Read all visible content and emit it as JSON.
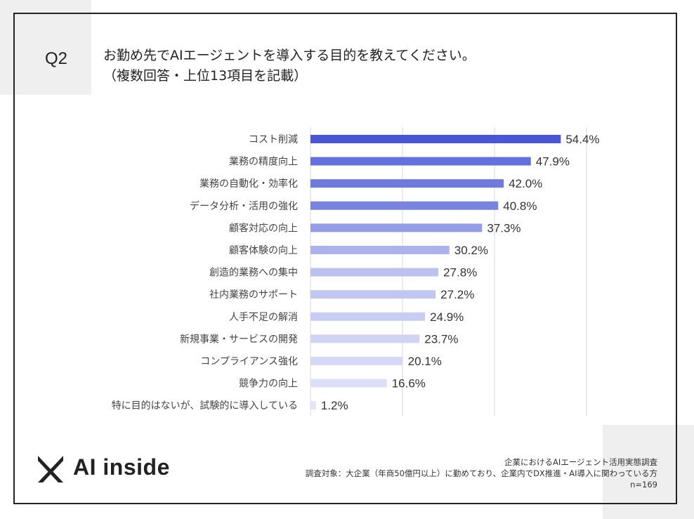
{
  "question": {
    "number": "Q2",
    "title_line1": "お勤め先でAIエージェントを導入する目的を教えてください。",
    "title_line2": "（複数回答・上位13項目を記載）"
  },
  "chart_data": {
    "type": "bar",
    "orientation": "horizontal",
    "categories": [
      "コスト削減",
      "業務の精度向上",
      "業務の自動化・効率化",
      "データ分析・活用の強化",
      "顧客対応の向上",
      "顧客体験の向上",
      "創造的業務への集中",
      "社内業務のサポート",
      "人手不足の解消",
      "新規事業・サービスの開発",
      "コンプライアンス強化",
      "競争力の向上",
      "特に目的はないが、試験的に導入している"
    ],
    "values": [
      54.4,
      47.9,
      42.0,
      40.8,
      37.3,
      30.2,
      27.8,
      27.2,
      24.9,
      23.7,
      20.1,
      16.6,
      1.2
    ],
    "value_labels": [
      "54.4%",
      "47.9%",
      "42.0%",
      "40.8%",
      "37.3%",
      "30.2%",
      "27.8%",
      "27.2%",
      "24.9%",
      "23.7%",
      "20.1%",
      "16.6%",
      "1.2%"
    ],
    "unit": "%",
    "xlim": [
      0,
      60
    ],
    "grid": "vertical",
    "colors": [
      "#4a56d4",
      "#6470db",
      "#6f7ade",
      "#7884e0",
      "#949de6",
      "#acb3ec",
      "#bcc1f0",
      "#c2c7f1",
      "#c9cdf3",
      "#d0d3f4",
      "#d6d9f6",
      "#dcdff7",
      "#e2e4f8"
    ]
  },
  "brand": {
    "logo_text": "AI inside"
  },
  "footer": {
    "line1": "企業におけるAIエージェント活用実態調査",
    "line2": "調査対象：大企業（年商50億円以上）に勤めており、企業内でDX推進・AI導入に関わっている方",
    "line3": "n=169"
  }
}
